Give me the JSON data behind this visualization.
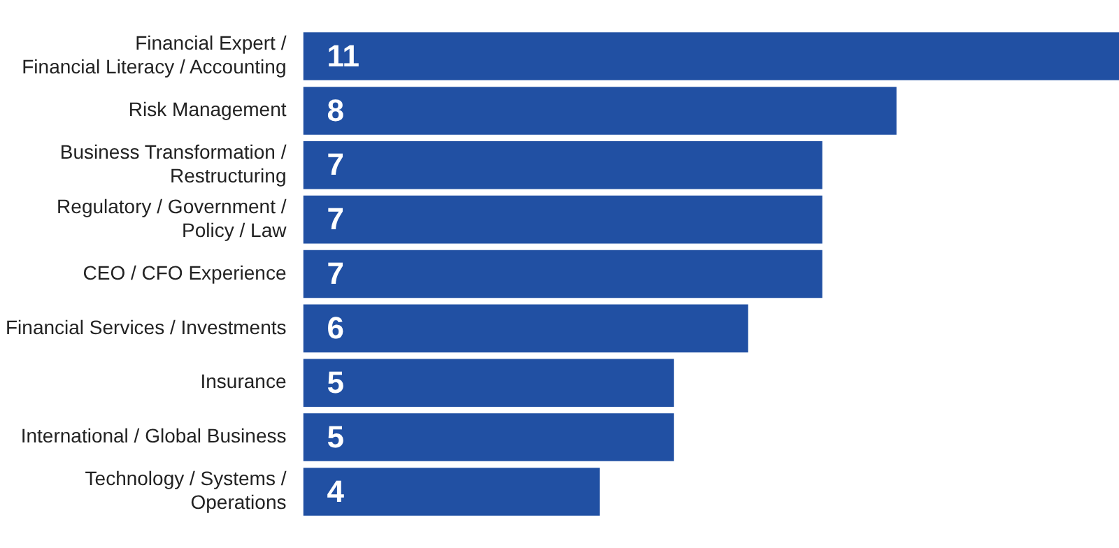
{
  "chart_data": {
    "type": "bar",
    "orientation": "horizontal",
    "categories": [
      "Financial Expert / Financial Literacy / Accounting",
      "Risk Management",
      "Business Transformation / Restructuring",
      "Regulatory / Government / Policy / Law",
      "CEO / CFO Experience",
      "Financial Services / Investments",
      "Insurance",
      "International / Global Business",
      "Technology / Systems / Operations"
    ],
    "values": [
      11,
      8,
      7,
      7,
      7,
      6,
      5,
      5,
      4
    ],
    "color": "#2150a3",
    "xlim": [
      0,
      11
    ],
    "tick_labels": "y",
    "legend": false,
    "data_labels": true
  }
}
